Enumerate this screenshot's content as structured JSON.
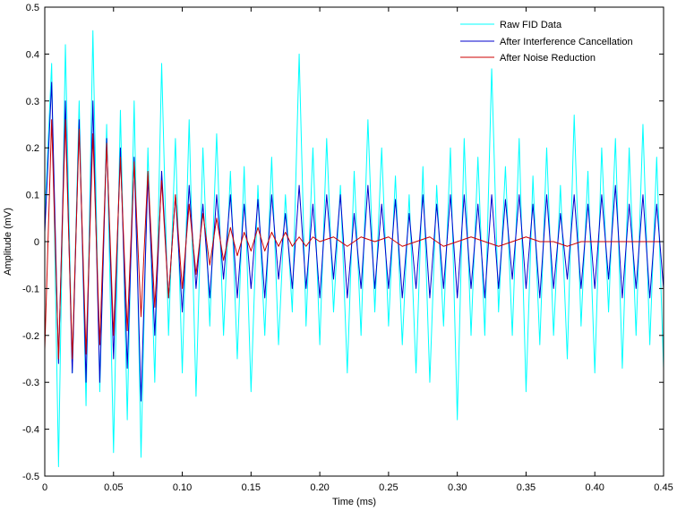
{
  "chart_data": {
    "type": "line",
    "title": "",
    "xlabel": "Time (ms)",
    "ylabel": "Amplitude (mV)",
    "xlim": [
      0,
      0.45
    ],
    "ylim": [
      -0.5,
      0.5
    ],
    "xticks": [
      0,
      0.05,
      0.1,
      0.15,
      0.2,
      0.25,
      0.3,
      0.35,
      0.4,
      0.45
    ],
    "xtick_labels": [
      "0",
      "0.05",
      "0.10",
      "0.15",
      "0.20",
      "0.25",
      "0.30",
      "0.35",
      "0.40",
      "0.45"
    ],
    "yticks": [
      -0.5,
      -0.4,
      -0.3,
      -0.2,
      -0.1,
      0,
      0.1,
      0.2,
      0.3,
      0.4,
      0.5
    ],
    "ytick_labels": [
      "-0.5",
      "-0.4",
      "-0.3",
      "-0.2",
      "-0.1",
      "0",
      "0.1",
      "0.2",
      "0.3",
      "0.4",
      "0.5"
    ],
    "grid": false,
    "legend_position": "top-right",
    "series": [
      {
        "name": "Raw FID Data",
        "color": "#00ffff",
        "x": [
          0,
          0.005,
          0.01,
          0.015,
          0.02,
          0.025,
          0.03,
          0.035,
          0.04,
          0.045,
          0.05,
          0.055,
          0.06,
          0.065,
          0.07,
          0.075,
          0.08,
          0.085,
          0.09,
          0.095,
          0.1,
          0.105,
          0.11,
          0.115,
          0.12,
          0.125,
          0.13,
          0.135,
          0.14,
          0.145,
          0.15,
          0.155,
          0.16,
          0.165,
          0.17,
          0.175,
          0.18,
          0.185,
          0.19,
          0.195,
          0.2,
          0.205,
          0.21,
          0.215,
          0.22,
          0.225,
          0.23,
          0.235,
          0.24,
          0.245,
          0.25,
          0.255,
          0.26,
          0.265,
          0.27,
          0.275,
          0.28,
          0.285,
          0.29,
          0.295,
          0.3,
          0.305,
          0.31,
          0.315,
          0.32,
          0.325,
          0.33,
          0.335,
          0.34,
          0.345,
          0.35,
          0.355,
          0.36,
          0.365,
          0.37,
          0.375,
          0.38,
          0.385,
          0.39,
          0.395,
          0.4,
          0.405,
          0.41,
          0.415,
          0.42,
          0.425,
          0.43,
          0.435,
          0.44,
          0.445,
          0.45
        ],
        "y": [
          0.05,
          0.38,
          -0.48,
          0.42,
          -0.28,
          0.3,
          -0.35,
          0.45,
          -0.32,
          0.25,
          -0.45,
          0.28,
          -0.38,
          0.3,
          -0.46,
          0.2,
          -0.3,
          0.38,
          -0.2,
          0.22,
          -0.28,
          0.26,
          -0.33,
          0.2,
          -0.18,
          0.23,
          -0.2,
          0.15,
          -0.25,
          0.16,
          -0.32,
          0.12,
          -0.2,
          0.18,
          -0.22,
          0.1,
          -0.15,
          0.4,
          -0.18,
          0.2,
          -0.22,
          0.22,
          -0.15,
          0.12,
          -0.28,
          0.15,
          -0.2,
          0.26,
          -0.15,
          0.2,
          -0.18,
          0.14,
          -0.22,
          0.1,
          -0.28,
          0.16,
          -0.3,
          0.12,
          -0.18,
          0.2,
          -0.38,
          0.22,
          -0.2,
          0.18,
          -0.2,
          0.37,
          -0.15,
          0.16,
          -0.2,
          0.22,
          -0.32,
          0.14,
          -0.22,
          0.2,
          -0.2,
          0.12,
          -0.25,
          0.27,
          -0.18,
          0.15,
          -0.28,
          0.2,
          -0.15,
          0.22,
          -0.27,
          0.2,
          -0.2,
          0.25,
          -0.22,
          0.18,
          -0.27
        ]
      },
      {
        "name": "After Interference Cancellation",
        "color": "#0000cc",
        "x": [
          0,
          0.005,
          0.01,
          0.015,
          0.02,
          0.025,
          0.03,
          0.035,
          0.04,
          0.045,
          0.05,
          0.055,
          0.06,
          0.065,
          0.07,
          0.075,
          0.08,
          0.085,
          0.09,
          0.095,
          0.1,
          0.105,
          0.11,
          0.115,
          0.12,
          0.125,
          0.13,
          0.135,
          0.14,
          0.145,
          0.15,
          0.155,
          0.16,
          0.165,
          0.17,
          0.175,
          0.18,
          0.185,
          0.19,
          0.195,
          0.2,
          0.205,
          0.21,
          0.215,
          0.22,
          0.225,
          0.23,
          0.235,
          0.24,
          0.245,
          0.25,
          0.255,
          0.26,
          0.265,
          0.27,
          0.275,
          0.28,
          0.285,
          0.29,
          0.295,
          0.3,
          0.305,
          0.31,
          0.315,
          0.32,
          0.325,
          0.33,
          0.335,
          0.34,
          0.345,
          0.35,
          0.355,
          0.36,
          0.365,
          0.37,
          0.375,
          0.38,
          0.385,
          0.39,
          0.395,
          0.4,
          0.405,
          0.41,
          0.415,
          0.42,
          0.425,
          0.43,
          0.435,
          0.44,
          0.445,
          0.45
        ],
        "y": [
          0.02,
          0.34,
          -0.26,
          0.3,
          -0.28,
          0.26,
          -0.3,
          0.3,
          -0.3,
          0.22,
          -0.25,
          0.2,
          -0.27,
          0.18,
          -0.34,
          0.14,
          -0.2,
          0.15,
          -0.12,
          0.1,
          -0.15,
          0.12,
          -0.1,
          0.08,
          -0.12,
          0.1,
          -0.08,
          0.1,
          -0.12,
          0.08,
          -0.1,
          0.09,
          -0.12,
          0.1,
          -0.08,
          0.06,
          -0.1,
          0.12,
          -0.1,
          0.08,
          -0.12,
          0.1,
          -0.08,
          0.1,
          -0.12,
          0.06,
          -0.1,
          0.12,
          -0.1,
          0.08,
          -0.1,
          0.09,
          -0.12,
          0.06,
          -0.1,
          0.1,
          -0.12,
          0.08,
          -0.1,
          0.1,
          -0.12,
          0.1,
          -0.1,
          0.08,
          -0.12,
          0.1,
          -0.1,
          0.09,
          -0.08,
          0.1,
          -0.1,
          0.08,
          -0.12,
          0.1,
          -0.1,
          0.06,
          -0.08,
          0.1,
          -0.1,
          0.08,
          -0.1,
          0.1,
          -0.08,
          0.12,
          -0.12,
          0.08,
          -0.1,
          0.1,
          -0.12,
          0.08,
          -0.1
        ]
      },
      {
        "name": "After Noise Reduction",
        "color": "#cc0000",
        "x": [
          0,
          0.005,
          0.01,
          0.015,
          0.02,
          0.025,
          0.03,
          0.035,
          0.04,
          0.045,
          0.05,
          0.055,
          0.06,
          0.065,
          0.07,
          0.075,
          0.08,
          0.085,
          0.09,
          0.095,
          0.1,
          0.105,
          0.11,
          0.115,
          0.12,
          0.125,
          0.13,
          0.135,
          0.14,
          0.145,
          0.15,
          0.155,
          0.16,
          0.165,
          0.17,
          0.175,
          0.18,
          0.185,
          0.19,
          0.195,
          0.2,
          0.21,
          0.22,
          0.23,
          0.24,
          0.25,
          0.26,
          0.27,
          0.28,
          0.29,
          0.3,
          0.31,
          0.32,
          0.33,
          0.34,
          0.35,
          0.36,
          0.37,
          0.38,
          0.39,
          0.4,
          0.41,
          0.42,
          0.43,
          0.44,
          0.45
        ],
        "y": [
          -0.23,
          0.26,
          -0.25,
          0.26,
          -0.25,
          0.24,
          -0.24,
          0.23,
          -0.22,
          0.21,
          -0.2,
          0.18,
          -0.19,
          0.17,
          -0.16,
          0.15,
          -0.14,
          0.13,
          -0.12,
          0.1,
          -0.1,
          0.08,
          -0.07,
          0.06,
          -0.05,
          0.05,
          -0.04,
          0.03,
          -0.03,
          0.02,
          -0.02,
          0.03,
          -0.02,
          0.02,
          -0.01,
          0.02,
          -0.01,
          0.01,
          -0.01,
          0.01,
          0,
          0.01,
          -0.01,
          0.01,
          0,
          0.01,
          -0.01,
          0,
          0.01,
          -0.01,
          0,
          0.01,
          0,
          -0.01,
          0,
          0.01,
          0,
          0,
          -0.01,
          0,
          0,
          0,
          0,
          0,
          0,
          0
        ]
      }
    ]
  }
}
